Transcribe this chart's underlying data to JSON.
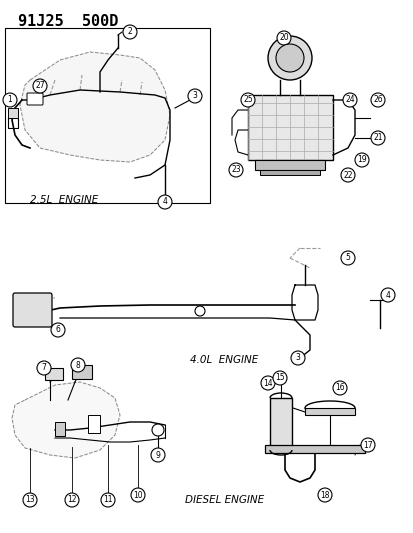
{
  "title": "91J25  500D",
  "bg_color": "#ffffff",
  "line_color": "#000000",
  "light_gray": "#cccccc",
  "dashed_color": "#aaaaaa",
  "labels": {
    "engine_25": "2.5L  ENGINE",
    "engine_40": "4.0L  ENGINE",
    "engine_diesel": "DIESEL ENGINE"
  },
  "callout_numbers": {
    "top_left": [
      1,
      2,
      3,
      4,
      27
    ],
    "top_right": [
      19,
      20,
      21,
      22,
      23,
      24,
      25,
      26
    ],
    "middle": [
      3,
      4,
      5,
      6
    ],
    "bottom_left": [
      7,
      8,
      9,
      10,
      11,
      12,
      13
    ],
    "bottom_right": [
      14,
      15,
      16,
      17,
      18
    ]
  },
  "font_size_title": 11,
  "font_size_label": 8,
  "font_size_callout": 6.5
}
